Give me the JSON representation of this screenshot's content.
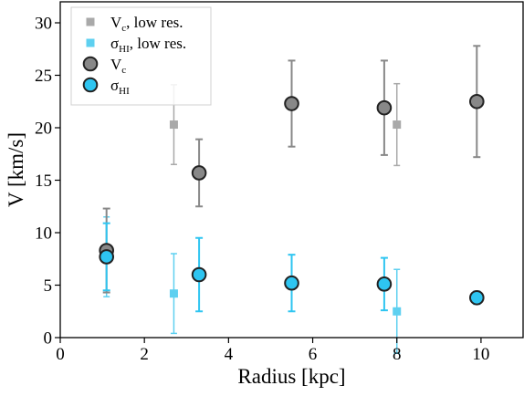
{
  "chart_data": {
    "type": "scatter",
    "title": "",
    "xlabel": "Radius [kpc]",
    "ylabel": "V [km/s]",
    "xlim": [
      0,
      11
    ],
    "ylim": [
      0,
      32
    ],
    "xticks": [
      0,
      2,
      4,
      6,
      8,
      10
    ],
    "yticks": [
      0,
      5,
      10,
      15,
      20,
      25,
      30
    ],
    "grid": false,
    "legend_position": "top-left",
    "series": [
      {
        "legend_main": "V",
        "legend_sub": "c",
        "legend_suffix": ", low res.",
        "marker": "square",
        "color": "#a9a9a9",
        "x": [
          2.7,
          8.0
        ],
        "y": [
          20.3,
          20.3
        ],
        "yerr": [
          3.8,
          3.9
        ]
      },
      {
        "legend_main": "σ",
        "legend_sub": "HI",
        "legend_suffix": ", low res.",
        "marker": "square",
        "color": "#5ed0f0",
        "x": [
          1.1,
          2.7,
          8.0
        ],
        "y": [
          7.7,
          4.2,
          2.5
        ],
        "yerr": [
          3.8,
          3.8,
          4.0
        ]
      },
      {
        "legend_main": "V",
        "legend_sub": "c",
        "legend_suffix": "",
        "marker": "circle",
        "color": "#888888",
        "x": [
          1.1,
          3.3,
          5.5,
          7.7,
          9.9
        ],
        "y": [
          8.3,
          15.7,
          22.3,
          21.9,
          22.5
        ],
        "yerr": [
          4.0,
          3.2,
          4.1,
          4.5,
          5.3
        ]
      },
      {
        "legend_main": "σ",
        "legend_sub": "HI",
        "legend_suffix": "",
        "marker": "circle",
        "color": "#2ec5f1",
        "x": [
          1.1,
          3.3,
          5.5,
          7.7,
          9.9
        ],
        "y": [
          7.7,
          6.0,
          5.2,
          5.1,
          3.8
        ],
        "yerr": [
          3.2,
          3.5,
          2.7,
          2.5,
          0.6
        ]
      }
    ]
  }
}
